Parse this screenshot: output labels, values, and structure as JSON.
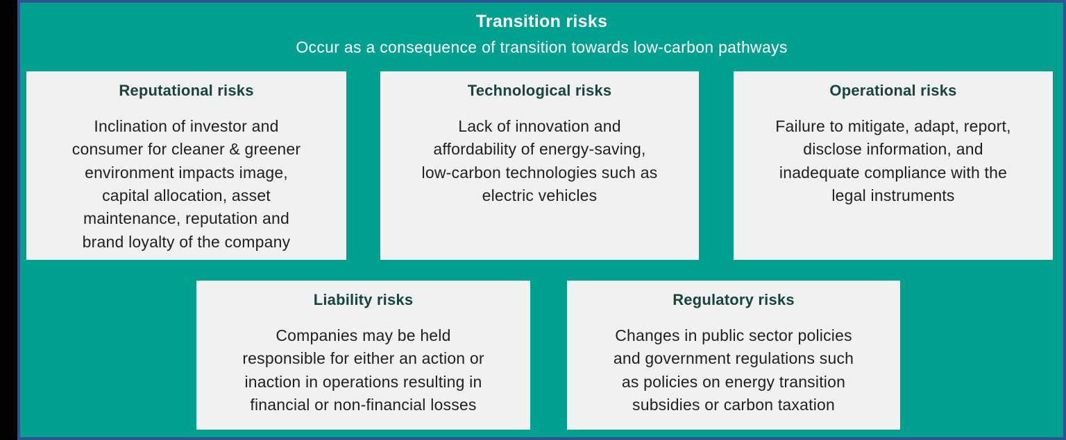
{
  "header": {
    "title": "Transition risks",
    "subtitle": "Occur as a consequence of transition towards low-carbon pathways"
  },
  "cards": [
    {
      "id": "reputational",
      "title": "Reputational risks",
      "body": "Inclination of investor and\nconsumer for cleaner & greener\nenvironment impacts image,\ncapital allocation, asset\nmaintenance, reputation and\nbrand loyalty of the company"
    },
    {
      "id": "technological",
      "title": "Technological risks",
      "body": "Lack of innovation and\naffordability of energy-saving,\nlow-carbon technologies such as\nelectric vehicles"
    },
    {
      "id": "operational",
      "title": "Operational risks",
      "body": "Failure to mitigate, adapt, report,\ndisclose information, and\ninadequate compliance with the\nlegal instruments"
    },
    {
      "id": "liability",
      "title": "Liability risks",
      "body": "Companies may be held\nresponsible for either an action or\ninaction in operations resulting in\nfinancial or non-financial losses"
    },
    {
      "id": "regulatory",
      "title": "Regulatory risks",
      "body": "Changes in public sector policies\nand government regulations such\nas policies on energy transition\nsubsidies or carbon taxation"
    }
  ],
  "colors": {
    "canvas_background": "#000000",
    "panel_background": "#00a091",
    "panel_border": "#2e5394",
    "card_background": "#f1f1f1",
    "card_title_text": "#17453b",
    "card_body_text": "#1f1f1f",
    "header_text": "#ffffff"
  }
}
